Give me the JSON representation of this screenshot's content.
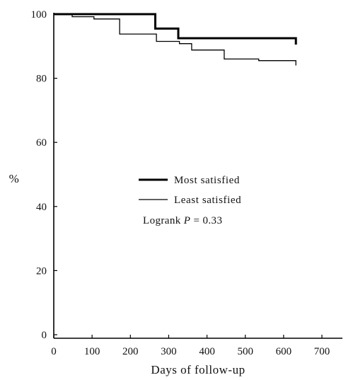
{
  "chart_data": {
    "type": "line",
    "step": true,
    "xlabel": "Days of follow-up",
    "ylabel": "%",
    "xlim": [
      0,
      700
    ],
    "ylim": [
      0,
      100
    ],
    "xticks": [
      0,
      100,
      200,
      300,
      400,
      500,
      600,
      700
    ],
    "yticks": [
      0,
      20,
      40,
      60,
      80,
      100
    ],
    "grid": false,
    "legend": {
      "placement": "center"
    },
    "series": [
      {
        "name": "Most satisfied",
        "color": "#000000",
        "line_weight": "thick",
        "x": [
          0,
          265,
          265,
          325,
          325,
          632,
          632
        ],
        "y": [
          100,
          100,
          95.5,
          95.5,
          92.5,
          92.5,
          90.5
        ]
      },
      {
        "name": "Least satisfied",
        "color": "#000000",
        "line_weight": "thin",
        "x": [
          0,
          48,
          48,
          105,
          105,
          172,
          172,
          268,
          268,
          328,
          328,
          360,
          360,
          445,
          445,
          535,
          535,
          632,
          632
        ],
        "y": [
          100,
          100,
          99.2,
          99.2,
          98.5,
          98.5,
          93.8,
          93.8,
          91.5,
          91.5,
          90.8,
          90.8,
          88.8,
          88.8,
          86,
          86,
          85.5,
          85.5,
          84
        ]
      }
    ],
    "annotations": [
      {
        "prefix": "Logrank ",
        "italic": "P",
        "suffix": " = 0.33"
      }
    ]
  }
}
